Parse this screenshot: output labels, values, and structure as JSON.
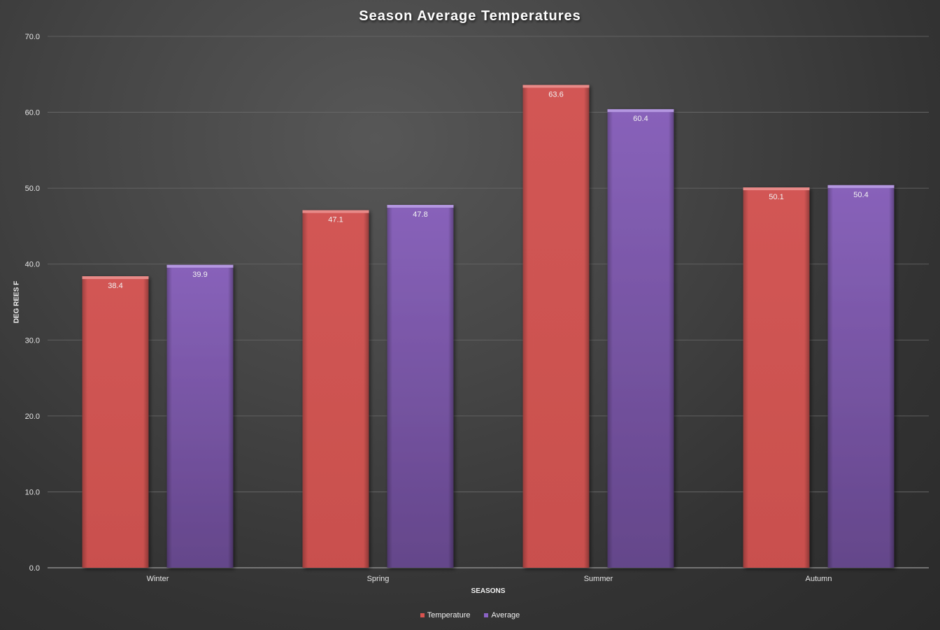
{
  "chart_data": {
    "type": "bar",
    "title": "Season Average Temperatures",
    "xlabel": "SEASONS",
    "ylabel": "DEG REES F",
    "categories": [
      "Winter",
      "Spring",
      "Summer",
      "Autumn"
    ],
    "series": [
      {
        "name": "Temperature",
        "values": [
          38.4,
          47.1,
          63.6,
          50.1
        ],
        "color": "#cd5452"
      },
      {
        "name": "Average",
        "values": [
          39.9,
          47.8,
          60.4,
          50.4
        ],
        "color": "#7e5aa8"
      }
    ],
    "ylim": [
      0,
      70
    ],
    "yticks": [
      0,
      10,
      20,
      30,
      40,
      50,
      60,
      70
    ],
    "ytick_labels": [
      "0.0",
      "10.0",
      "20.0",
      "30.0",
      "40.0",
      "50.0",
      "60.0",
      "70.0"
    ],
    "data_labels": [
      [
        "38.4",
        "47.1",
        "63.6",
        "50.1"
      ],
      [
        "39.9",
        "47.8",
        "60.4",
        "50.4"
      ]
    ],
    "grid": true,
    "legend_position": "bottom"
  }
}
